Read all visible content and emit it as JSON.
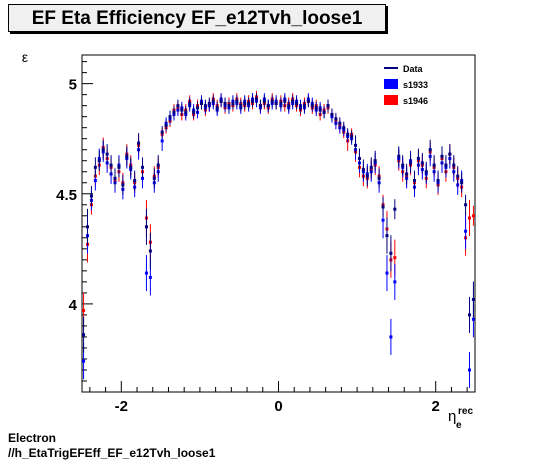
{
  "header": {
    "title": "EF Eta Efficiency EF_e12Tvh_loose1"
  },
  "footer": {
    "line1": "Electron",
    "line2": "//h_EtaTrigEFEff_EF_e12Tvh_loose1"
  },
  "chart_data": {
    "type": "scatter",
    "title": "EF Eta Efficiency EF_e12Tvh_loose1",
    "ylabel": "ε",
    "xlabel": "η",
    "xlabel_sub": "e",
    "xlabel_sup": "rec",
    "xlim": [
      -2.5,
      2.5
    ],
    "ylim": [
      3.6,
      5.13
    ],
    "xticks": [
      -2,
      0,
      2
    ],
    "xtick_labels": [
      "-2",
      "0",
      "2"
    ],
    "yticks": [
      4,
      4.5,
      5
    ],
    "ytick_labels": [
      "4",
      "4.5",
      "5"
    ],
    "grid": false,
    "legend": {
      "placement": "top-right",
      "entries": [
        {
          "label": "Data",
          "color": "#000080",
          "marker": "line"
        },
        {
          "label": "s1933",
          "color": "#0000ff",
          "marker": "box"
        },
        {
          "label": "s1946",
          "color": "#ff0000",
          "marker": "box"
        }
      ]
    },
    "series": [
      {
        "name": "s1946",
        "color": "#ff0000",
        "x": [
          -2.48,
          -2.43,
          -2.38,
          -2.33,
          -2.28,
          -2.23,
          -2.18,
          -2.13,
          -2.08,
          -2.03,
          -1.98,
          -1.93,
          -1.88,
          -1.83,
          -1.78,
          -1.73,
          -1.68,
          -1.63,
          -1.58,
          -1.53,
          -1.48,
          -1.43,
          -1.38,
          -1.33,
          -1.28,
          -1.23,
          -1.18,
          -1.13,
          -1.08,
          -1.03,
          -0.98,
          -0.93,
          -0.88,
          -0.83,
          -0.78,
          -0.73,
          -0.68,
          -0.63,
          -0.58,
          -0.53,
          -0.48,
          -0.43,
          -0.38,
          -0.33,
          -0.28,
          -0.23,
          -0.18,
          -0.13,
          -0.08,
          -0.03,
          0.03,
          0.08,
          0.13,
          0.18,
          0.23,
          0.28,
          0.33,
          0.38,
          0.43,
          0.48,
          0.53,
          0.58,
          0.63,
          0.68,
          0.73,
          0.78,
          0.83,
          0.88,
          0.93,
          0.98,
          1.03,
          1.08,
          1.13,
          1.18,
          1.23,
          1.28,
          1.33,
          1.38,
          1.43,
          1.48,
          1.53,
          1.58,
          1.63,
          1.68,
          1.73,
          1.78,
          1.83,
          1.88,
          1.93,
          1.98,
          2.03,
          2.08,
          2.13,
          2.18,
          2.23,
          2.28,
          2.33,
          2.38,
          2.43,
          2.48
        ],
        "y": [
          3.97,
          4.27,
          4.45,
          4.58,
          4.63,
          4.71,
          4.66,
          4.62,
          4.56,
          4.6,
          4.55,
          4.68,
          4.63,
          4.55,
          4.72,
          4.6,
          4.39,
          4.28,
          4.58,
          4.62,
          4.77,
          4.8,
          4.83,
          4.88,
          4.89,
          4.86,
          4.88,
          4.92,
          4.86,
          4.9,
          4.91,
          4.88,
          4.9,
          4.93,
          4.9,
          4.92,
          4.89,
          4.91,
          4.9,
          4.93,
          4.91,
          4.9,
          4.92,
          4.91,
          4.94,
          4.9,
          4.91,
          4.89,
          4.93,
          4.91,
          4.92,
          4.9,
          4.91,
          4.93,
          4.9,
          4.88,
          4.91,
          4.92,
          4.89,
          4.9,
          4.86,
          4.88,
          4.89,
          4.86,
          4.83,
          4.81,
          4.78,
          4.74,
          4.77,
          4.69,
          4.62,
          4.58,
          4.57,
          4.61,
          4.63,
          4.58,
          4.45,
          4.34,
          4.2,
          4.21,
          4.65,
          4.6,
          4.58,
          4.63,
          4.55,
          4.65,
          4.63,
          4.57,
          4.69,
          4.62,
          4.54,
          4.66,
          4.6,
          4.68,
          4.62,
          4.57,
          4.53,
          4.3,
          4.39,
          4.4
        ]
      },
      {
        "name": "s1933",
        "color": "#0000ff",
        "x": [
          -2.48,
          -2.43,
          -2.38,
          -2.33,
          -2.28,
          -2.23,
          -2.18,
          -2.13,
          -2.08,
          -2.03,
          -1.98,
          -1.93,
          -1.88,
          -1.83,
          -1.78,
          -1.73,
          -1.68,
          -1.63,
          -1.58,
          -1.53,
          -1.48,
          -1.43,
          -1.38,
          -1.33,
          -1.28,
          -1.23,
          -1.18,
          -1.13,
          -1.08,
          -1.03,
          -0.98,
          -0.93,
          -0.88,
          -0.83,
          -0.78,
          -0.73,
          -0.68,
          -0.63,
          -0.58,
          -0.53,
          -0.48,
          -0.43,
          -0.38,
          -0.33,
          -0.28,
          -0.23,
          -0.18,
          -0.13,
          -0.08,
          -0.03,
          0.03,
          0.08,
          0.13,
          0.18,
          0.23,
          0.28,
          0.33,
          0.38,
          0.43,
          0.48,
          0.53,
          0.58,
          0.63,
          0.68,
          0.73,
          0.78,
          0.83,
          0.88,
          0.93,
          0.98,
          1.03,
          1.08,
          1.13,
          1.18,
          1.23,
          1.28,
          1.33,
          1.38,
          1.43,
          1.48,
          1.53,
          1.58,
          1.63,
          1.68,
          1.73,
          1.78,
          1.83,
          1.88,
          1.93,
          1.98,
          2.03,
          2.08,
          2.13,
          2.18,
          2.23,
          2.28,
          2.33,
          2.38,
          2.43,
          2.48
        ],
        "y": [
          3.74,
          4.31,
          4.47,
          4.56,
          4.66,
          4.69,
          4.64,
          4.59,
          4.55,
          4.63,
          4.52,
          4.66,
          4.61,
          4.53,
          4.7,
          4.57,
          4.14,
          4.12,
          4.55,
          4.6,
          4.74,
          4.82,
          4.84,
          4.86,
          4.88,
          4.89,
          4.86,
          4.9,
          4.88,
          4.87,
          4.92,
          4.89,
          4.9,
          4.91,
          4.88,
          4.93,
          4.9,
          4.89,
          4.92,
          4.91,
          4.89,
          4.92,
          4.9,
          4.93,
          4.92,
          4.89,
          4.93,
          4.9,
          4.91,
          4.92,
          4.9,
          4.93,
          4.89,
          4.91,
          4.92,
          4.9,
          4.89,
          4.93,
          4.91,
          4.88,
          4.89,
          4.87,
          4.9,
          4.85,
          4.82,
          4.8,
          4.79,
          4.76,
          4.75,
          4.7,
          4.64,
          4.6,
          4.59,
          4.6,
          4.64,
          4.55,
          4.38,
          4.14,
          3.85,
          4.1,
          4.66,
          4.62,
          4.57,
          4.65,
          4.53,
          4.63,
          4.61,
          4.59,
          4.67,
          4.6,
          4.55,
          4.64,
          4.62,
          4.66,
          4.6,
          4.54,
          4.56,
          4.33,
          3.7,
          3.93
        ]
      },
      {
        "name": "Data",
        "color": "#000080",
        "x": [
          -2.48,
          -2.43,
          -2.38,
          -2.33,
          -2.28,
          -2.23,
          -2.18,
          -2.13,
          -2.08,
          -2.03,
          -1.98,
          -1.93,
          -1.88,
          -1.83,
          -1.78,
          -1.73,
          -1.68,
          -1.63,
          -1.58,
          -1.53,
          -1.48,
          -1.43,
          -1.38,
          -1.33,
          -1.28,
          -1.23,
          -1.18,
          -1.13,
          -1.08,
          -1.03,
          -0.98,
          -0.93,
          -0.88,
          -0.83,
          -0.78,
          -0.73,
          -0.68,
          -0.63,
          -0.58,
          -0.53,
          -0.48,
          -0.43,
          -0.38,
          -0.33,
          -0.28,
          -0.23,
          -0.18,
          -0.13,
          -0.08,
          -0.03,
          0.03,
          0.08,
          0.13,
          0.18,
          0.23,
          0.28,
          0.33,
          0.38,
          0.43,
          0.48,
          0.53,
          0.58,
          0.63,
          0.68,
          0.73,
          0.78,
          0.83,
          0.88,
          0.93,
          0.98,
          1.03,
          1.08,
          1.13,
          1.18,
          1.23,
          1.28,
          1.33,
          1.38,
          1.43,
          1.48,
          1.53,
          1.58,
          1.63,
          1.68,
          1.73,
          1.78,
          1.83,
          1.88,
          1.93,
          1.98,
          2.03,
          2.08,
          2.13,
          2.18,
          2.23,
          2.28,
          2.33,
          2.38,
          2.43,
          2.48
        ],
        "y": [
          3.86,
          4.35,
          4.49,
          4.62,
          4.65,
          4.7,
          4.68,
          4.63,
          4.57,
          4.62,
          4.54,
          4.67,
          4.62,
          4.56,
          4.73,
          4.62,
          4.35,
          4.24,
          4.57,
          4.63,
          4.78,
          4.81,
          4.85,
          4.87,
          4.9,
          4.88,
          4.87,
          4.91,
          4.87,
          4.89,
          4.91,
          4.9,
          4.91,
          4.92,
          4.89,
          4.92,
          4.91,
          4.9,
          4.91,
          4.92,
          4.9,
          4.91,
          4.91,
          4.92,
          4.93,
          4.9,
          4.92,
          4.9,
          4.92,
          4.91,
          4.91,
          4.92,
          4.9,
          4.92,
          4.91,
          4.89,
          4.9,
          4.92,
          4.9,
          4.89,
          4.88,
          4.87,
          4.9,
          4.86,
          4.84,
          4.82,
          4.8,
          4.77,
          4.76,
          4.72,
          4.66,
          4.61,
          4.58,
          4.62,
          4.65,
          4.57,
          4.44,
          4.31,
          4.23,
          4.43,
          4.67,
          4.63,
          4.59,
          4.64,
          4.56,
          4.66,
          4.64,
          4.6,
          4.7,
          4.63,
          4.56,
          4.67,
          4.63,
          4.68,
          4.63,
          4.58,
          4.55,
          4.45,
          3.95,
          4.02
        ]
      }
    ]
  }
}
